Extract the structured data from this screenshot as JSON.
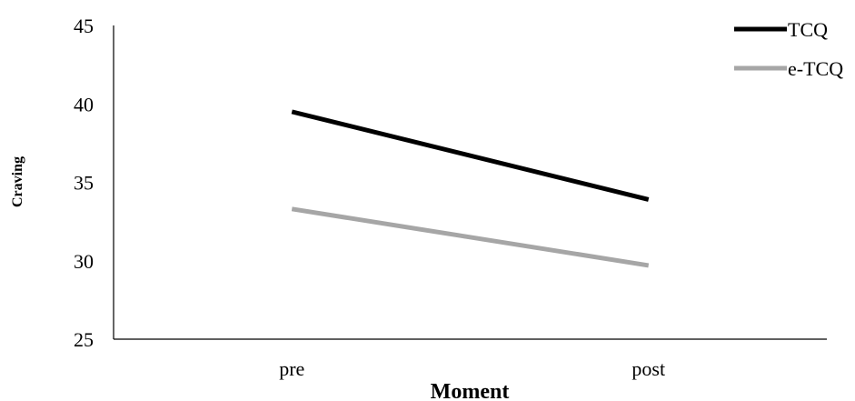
{
  "chart_data": {
    "type": "line",
    "categories": [
      "pre",
      "post"
    ],
    "series": [
      {
        "name": "TCQ",
        "values": [
          39.5,
          33.9
        ],
        "color": "#000000"
      },
      {
        "name": "e-TCQ",
        "values": [
          33.3,
          29.7
        ],
        "color": "#a6a6a6"
      }
    ],
    "title": "",
    "xlabel": "Moment",
    "ylabel": "Craving",
    "ylim": [
      25,
      45
    ],
    "yticks": [
      25,
      30,
      35,
      40,
      45
    ],
    "grid": false,
    "legend_position": "top-right"
  }
}
